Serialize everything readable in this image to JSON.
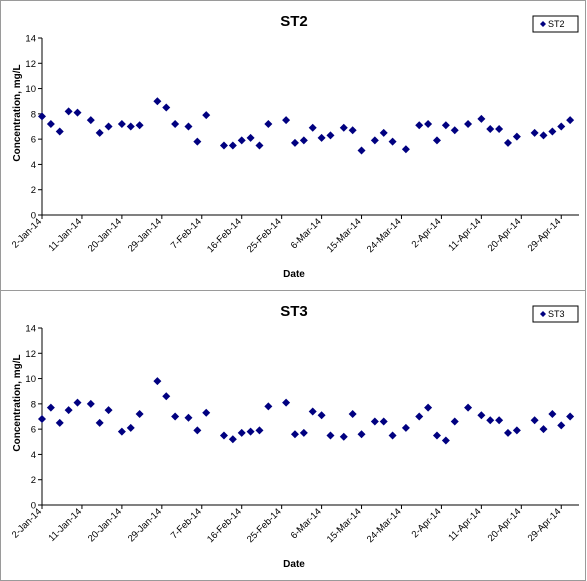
{
  "chart_data": [
    {
      "type": "scatter",
      "title": "ST2",
      "xlabel": "Date",
      "ylabel": "Concentration, mg/L",
      "ylim": [
        0,
        14
      ],
      "yticks": [
        0,
        2,
        4,
        6,
        8,
        10,
        12,
        14
      ],
      "xlim": [
        "2014-01-02",
        "2014-05-03"
      ],
      "xticks": [
        "2-Jan-14",
        "11-Jan-14",
        "20-Jan-14",
        "29-Jan-14",
        "7-Feb-14",
        "16-Feb-14",
        "25-Feb-14",
        "6-Mar-14",
        "15-Mar-14",
        "24-Mar-14",
        "2-Apr-14",
        "11-Apr-14",
        "20-Apr-14",
        "29-Apr-14"
      ],
      "legend": "top-right",
      "color": "#000080",
      "series": [
        {
          "name": "ST2",
          "points": [
            [
              "2014-01-02",
              7.8
            ],
            [
              "2014-01-04",
              7.2
            ],
            [
              "2014-01-06",
              6.6
            ],
            [
              "2014-01-08",
              8.2
            ],
            [
              "2014-01-10",
              8.1
            ],
            [
              "2014-01-13",
              7.5
            ],
            [
              "2014-01-15",
              6.5
            ],
            [
              "2014-01-17",
              7.0
            ],
            [
              "2014-01-20",
              7.2
            ],
            [
              "2014-01-22",
              7.0
            ],
            [
              "2014-01-24",
              7.1
            ],
            [
              "2014-01-28",
              9.0
            ],
            [
              "2014-01-30",
              8.5
            ],
            [
              "2014-02-01",
              7.2
            ],
            [
              "2014-02-04",
              7.0
            ],
            [
              "2014-02-06",
              5.8
            ],
            [
              "2014-02-08",
              7.9
            ],
            [
              "2014-02-12",
              5.5
            ],
            [
              "2014-02-14",
              5.5
            ],
            [
              "2014-02-16",
              5.9
            ],
            [
              "2014-02-18",
              6.1
            ],
            [
              "2014-02-20",
              5.5
            ],
            [
              "2014-02-22",
              7.2
            ],
            [
              "2014-02-26",
              7.5
            ],
            [
              "2014-02-28",
              5.7
            ],
            [
              "2014-03-02",
              5.9
            ],
            [
              "2014-03-04",
              6.9
            ],
            [
              "2014-03-06",
              6.1
            ],
            [
              "2014-03-08",
              6.3
            ],
            [
              "2014-03-11",
              6.9
            ],
            [
              "2014-03-13",
              6.7
            ],
            [
              "2014-03-15",
              5.1
            ],
            [
              "2014-03-18",
              5.9
            ],
            [
              "2014-03-20",
              6.5
            ],
            [
              "2014-03-22",
              5.8
            ],
            [
              "2014-03-25",
              5.2
            ],
            [
              "2014-03-28",
              7.1
            ],
            [
              "2014-03-30",
              7.2
            ],
            [
              "2014-04-01",
              5.9
            ],
            [
              "2014-04-03",
              7.1
            ],
            [
              "2014-04-05",
              6.7
            ],
            [
              "2014-04-08",
              7.2
            ],
            [
              "2014-04-11",
              7.6
            ],
            [
              "2014-04-13",
              6.8
            ],
            [
              "2014-04-15",
              6.8
            ],
            [
              "2014-04-17",
              5.7
            ],
            [
              "2014-04-19",
              6.2
            ],
            [
              "2014-04-23",
              6.5
            ],
            [
              "2014-04-25",
              6.3
            ],
            [
              "2014-04-27",
              6.6
            ],
            [
              "2014-04-29",
              7.0
            ],
            [
              "2014-05-01",
              7.5
            ]
          ]
        }
      ]
    },
    {
      "type": "scatter",
      "title": "ST3",
      "xlabel": "Date",
      "ylabel": "Concentration, mg/L",
      "ylim": [
        0,
        14
      ],
      "yticks": [
        0,
        2,
        4,
        6,
        8,
        10,
        12,
        14
      ],
      "xlim": [
        "2014-01-02",
        "2014-05-03"
      ],
      "xticks": [
        "2-Jan-14",
        "11-Jan-14",
        "20-Jan-14",
        "29-Jan-14",
        "7-Feb-14",
        "16-Feb-14",
        "25-Feb-14",
        "6-Mar-14",
        "15-Mar-14",
        "24-Mar-14",
        "2-Apr-14",
        "11-Apr-14",
        "20-Apr-14",
        "29-Apr-14"
      ],
      "legend": "top-right",
      "color": "#000080",
      "series": [
        {
          "name": "ST3",
          "points": [
            [
              "2014-01-02",
              6.8
            ],
            [
              "2014-01-04",
              7.7
            ],
            [
              "2014-01-06",
              6.5
            ],
            [
              "2014-01-08",
              7.5
            ],
            [
              "2014-01-10",
              8.1
            ],
            [
              "2014-01-13",
              8.0
            ],
            [
              "2014-01-15",
              6.5
            ],
            [
              "2014-01-17",
              7.5
            ],
            [
              "2014-01-20",
              5.8
            ],
            [
              "2014-01-22",
              6.1
            ],
            [
              "2014-01-24",
              7.2
            ],
            [
              "2014-01-28",
              9.8
            ],
            [
              "2014-01-30",
              8.6
            ],
            [
              "2014-02-01",
              7.0
            ],
            [
              "2014-02-04",
              6.9
            ],
            [
              "2014-02-06",
              5.9
            ],
            [
              "2014-02-08",
              7.3
            ],
            [
              "2014-02-12",
              5.5
            ],
            [
              "2014-02-14",
              5.2
            ],
            [
              "2014-02-16",
              5.7
            ],
            [
              "2014-02-18",
              5.8
            ],
            [
              "2014-02-20",
              5.9
            ],
            [
              "2014-02-22",
              7.8
            ],
            [
              "2014-02-26",
              8.1
            ],
            [
              "2014-02-28",
              5.6
            ],
            [
              "2014-03-02",
              5.7
            ],
            [
              "2014-03-04",
              7.4
            ],
            [
              "2014-03-06",
              7.1
            ],
            [
              "2014-03-08",
              5.5
            ],
            [
              "2014-03-11",
              5.4
            ],
            [
              "2014-03-13",
              7.2
            ],
            [
              "2014-03-15",
              5.6
            ],
            [
              "2014-03-18",
              6.6
            ],
            [
              "2014-03-20",
              6.6
            ],
            [
              "2014-03-22",
              5.5
            ],
            [
              "2014-03-25",
              6.1
            ],
            [
              "2014-03-28",
              7.0
            ],
            [
              "2014-03-30",
              7.7
            ],
            [
              "2014-04-01",
              5.5
            ],
            [
              "2014-04-03",
              5.1
            ],
            [
              "2014-04-05",
              6.6
            ],
            [
              "2014-04-08",
              7.7
            ],
            [
              "2014-04-11",
              7.1
            ],
            [
              "2014-04-13",
              6.7
            ],
            [
              "2014-04-15",
              6.7
            ],
            [
              "2014-04-17",
              5.7
            ],
            [
              "2014-04-19",
              5.9
            ],
            [
              "2014-04-23",
              6.7
            ],
            [
              "2014-04-25",
              6.0
            ],
            [
              "2014-04-27",
              7.2
            ],
            [
              "2014-04-29",
              6.3
            ],
            [
              "2014-05-01",
              7.0
            ]
          ]
        }
      ]
    }
  ]
}
